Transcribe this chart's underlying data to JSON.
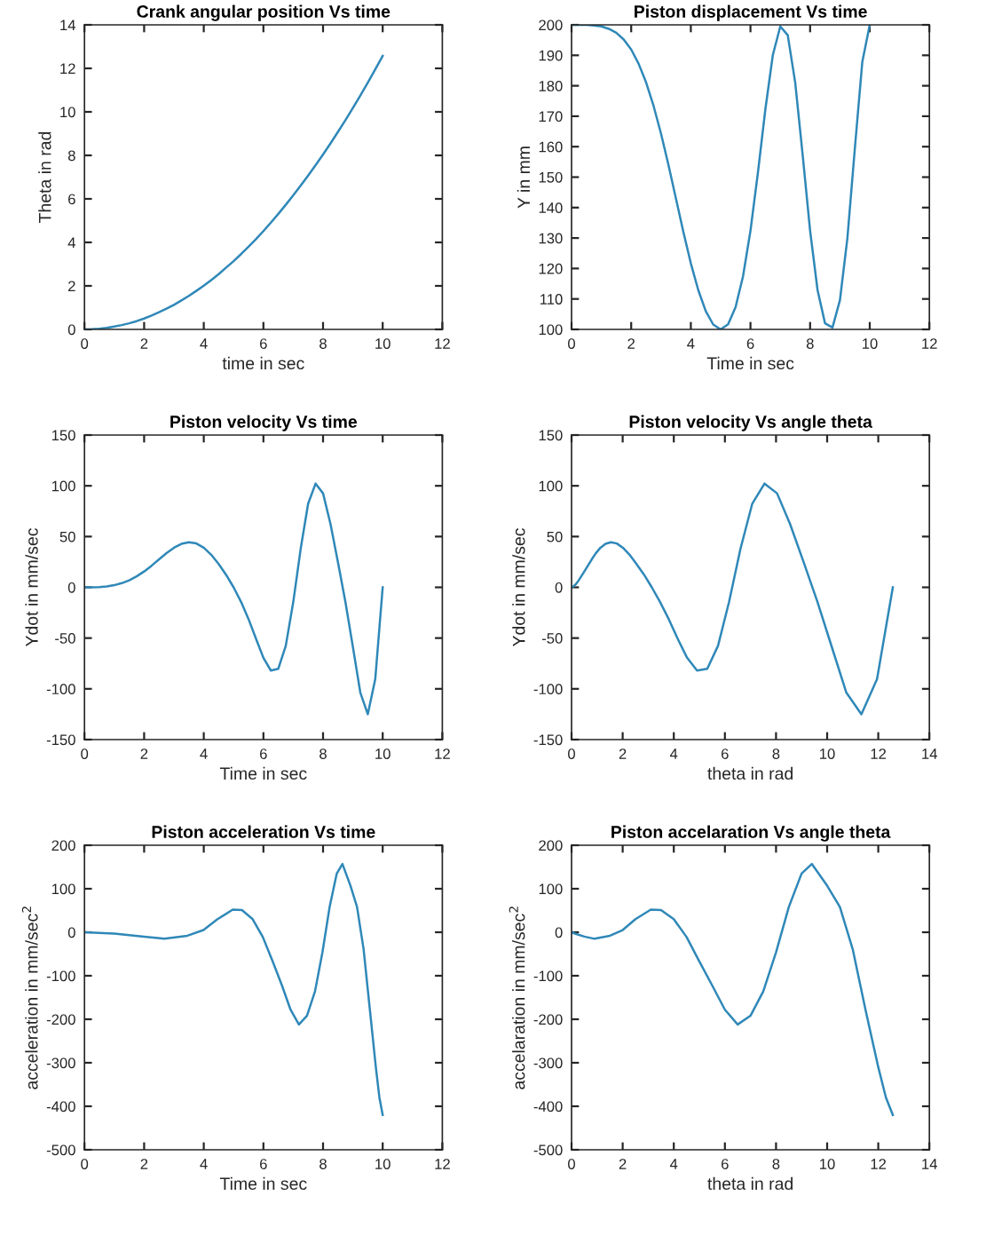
{
  "chart_data": [
    {
      "type": "line",
      "title": "Crank angular position Vs time",
      "xlabel": "time in sec",
      "ylabel": "Theta in rad",
      "xlim": [
        0,
        12
      ],
      "xticks": [
        0,
        2,
        4,
        6,
        8,
        10,
        12
      ],
      "ylim": [
        0,
        14
      ],
      "yticks": [
        0,
        2,
        4,
        6,
        8,
        10,
        12,
        14
      ],
      "grid": false,
      "x": [
        0,
        0.25,
        0.5,
        0.75,
        1,
        1.25,
        1.5,
        1.75,
        2,
        2.25,
        2.5,
        2.75,
        3,
        3.25,
        3.5,
        3.75,
        4,
        4.25,
        4.5,
        4.75,
        5,
        5.25,
        5.5,
        5.75,
        6,
        6.25,
        6.5,
        6.75,
        7,
        7.25,
        7.5,
        7.75,
        8,
        8.25,
        8.5,
        8.75,
        9,
        9.25,
        9.5,
        9.75,
        10
      ],
      "series": [
        {
          "color": "#2f88b8",
          "values": [
            0.0,
            0.01,
            0.03,
            0.07,
            0.13,
            0.2,
            0.28,
            0.38,
            0.5,
            0.64,
            0.79,
            0.95,
            1.13,
            1.33,
            1.54,
            1.77,
            2.01,
            2.27,
            2.54,
            2.84,
            3.14,
            3.46,
            3.8,
            4.15,
            4.52,
            4.91,
            5.31,
            5.73,
            6.16,
            6.61,
            7.07,
            7.55,
            8.04,
            8.55,
            9.08,
            9.62,
            10.18,
            10.75,
            11.34,
            11.95,
            12.57
          ]
        }
      ]
    },
    {
      "type": "line",
      "title": "Piston displacement Vs time",
      "xlabel": "Time in sec",
      "ylabel": "Y in mm",
      "xlim": [
        0,
        12
      ],
      "xticks": [
        0,
        2,
        4,
        6,
        8,
        10,
        12
      ],
      "ylim": [
        100,
        200
      ],
      "yticks": [
        100,
        110,
        120,
        130,
        140,
        150,
        160,
        170,
        180,
        190,
        200
      ],
      "grid": false,
      "x": [
        0,
        0.25,
        0.5,
        0.75,
        1,
        1.25,
        1.5,
        1.75,
        2,
        2.25,
        2.5,
        2.75,
        3,
        3.25,
        3.5,
        3.75,
        4,
        4.25,
        4.5,
        4.75,
        5,
        5.25,
        5.5,
        5.75,
        6,
        6.25,
        6.5,
        6.75,
        7,
        7.25,
        7.5,
        7.75,
        8,
        8.25,
        8.5,
        8.75,
        9,
        9.25,
        9.5,
        9.75,
        10
      ],
      "series": [
        {
          "color": "#2f88b8",
          "values": [
            200.0,
            200.0,
            200.0,
            199.8,
            199.5,
            198.7,
            197.4,
            195.2,
            191.9,
            187.2,
            181.1,
            173.4,
            164.3,
            154.0,
            143.0,
            132.0,
            121.7,
            112.9,
            106.0,
            101.6,
            100.0,
            101.7,
            107.3,
            117.4,
            132.4,
            151.5,
            172.3,
            190.1,
            199.5,
            196.6,
            181.1,
            157.3,
            132.4,
            112.9,
            102.0,
            100.6,
            109.6,
            129.9,
            159.4,
            187.8,
            200.0
          ]
        }
      ]
    },
    {
      "type": "line",
      "title": "Piston velocity Vs time",
      "xlabel": "Time in sec",
      "ylabel": "Ydot in mm/sec",
      "xlim": [
        0,
        12
      ],
      "xticks": [
        0,
        2,
        4,
        6,
        8,
        10,
        12
      ],
      "ylim": [
        -150,
        150
      ],
      "yticks": [
        -150,
        -100,
        -50,
        0,
        50,
        100,
        150
      ],
      "grid": false,
      "x": [
        0,
        0.25,
        0.5,
        0.75,
        1,
        1.25,
        1.5,
        1.75,
        2,
        2.25,
        2.5,
        2.75,
        3,
        3.25,
        3.5,
        3.75,
        4,
        4.25,
        4.5,
        4.75,
        5,
        5.25,
        5.5,
        5.75,
        6,
        6.25,
        6.5,
        6.75,
        7,
        7.25,
        7.5,
        7.75,
        8,
        8.25,
        8.5,
        8.75,
        9,
        9.25,
        9.5,
        9.75,
        10
      ],
      "series": [
        {
          "color": "#2f88b8",
          "values": [
            0.0,
            0.0,
            0.3,
            0.9,
            2.1,
            4.1,
            6.9,
            10.8,
            15.6,
            21.3,
            27.5,
            33.6,
            39.0,
            42.8,
            44.4,
            43.2,
            39.0,
            32.1,
            23.0,
            12.3,
            0.0,
            -14.3,
            -31.2,
            -50.5,
            -69.4,
            -82.0,
            -80.2,
            -57.6,
            -14.7,
            38.0,
            82.4,
            102.2,
            92.6,
            62.3,
            24.8,
            -14.4,
            -58.6,
            -103.7,
            -125.0,
            -90.6,
            0.0
          ]
        }
      ]
    },
    {
      "type": "line",
      "title": "Piston velocity Vs angle theta",
      "xlabel": "theta in rad",
      "ylabel": "Ydot in mm/sec",
      "xlim": [
        0,
        14
      ],
      "xticks": [
        0,
        2,
        4,
        6,
        8,
        10,
        12,
        14
      ],
      "ylim": [
        -150,
        150
      ],
      "yticks": [
        -150,
        -100,
        -50,
        0,
        50,
        100,
        150
      ],
      "grid": false,
      "x": [
        0.0,
        0.01,
        0.03,
        0.07,
        0.13,
        0.2,
        0.28,
        0.38,
        0.5,
        0.64,
        0.79,
        0.95,
        1.13,
        1.33,
        1.54,
        1.77,
        2.01,
        2.27,
        2.54,
        2.84,
        3.14,
        3.46,
        3.8,
        4.15,
        4.52,
        4.91,
        5.31,
        5.73,
        6.16,
        6.61,
        7.07,
        7.55,
        8.04,
        8.55,
        9.08,
        9.62,
        10.18,
        10.75,
        11.34,
        11.95,
        12.57
      ],
      "series": [
        {
          "color": "#2f88b8",
          "values": [
            0.0,
            0.0,
            0.3,
            0.9,
            2.1,
            4.1,
            6.9,
            10.8,
            15.6,
            21.3,
            27.5,
            33.6,
            39.0,
            42.8,
            44.4,
            43.2,
            39.0,
            32.1,
            23.0,
            12.3,
            0.0,
            -14.3,
            -31.2,
            -50.5,
            -69.4,
            -82.0,
            -80.2,
            -57.6,
            -14.7,
            38.0,
            82.4,
            102.2,
            92.6,
            62.3,
            24.8,
            -14.4,
            -58.6,
            -103.7,
            -125.0,
            -90.6,
            0.0
          ]
        }
      ]
    },
    {
      "type": "line",
      "title": "Piston acceleration Vs time",
      "xlabel": "Time in sec",
      "ylabel": "acceleration in mm/sec$^{2}$",
      "xlim": [
        0,
        12
      ],
      "xticks": [
        0,
        2,
        4,
        6,
        8,
        10,
        12
      ],
      "ylim": [
        -500,
        200
      ],
      "yticks": [
        -500,
        -400,
        -300,
        -200,
        -100,
        0,
        100,
        200
      ],
      "grid": false,
      "x": [
        0,
        1,
        2,
        2.68,
        3.45,
        3.99,
        4.46,
        4.97,
        5.28,
        5.64,
        5.98,
        6.31,
        6.62,
        6.91,
        7.19,
        7.46,
        7.73,
        7.98,
        8.22,
        8.46,
        8.65,
        8.92,
        9.14,
        9.36,
        9.57,
        9.77,
        9.89,
        10
      ],
      "series": [
        {
          "color": "#2f88b8",
          "values": [
            0,
            -3,
            -10,
            -15,
            -8,
            5,
            30,
            52,
            51,
            30,
            -11,
            -67,
            -122,
            -178,
            -212,
            -192,
            -136,
            -46,
            58,
            135,
            157,
            107,
            58,
            -39,
            -178,
            -310,
            -380,
            -420
          ]
        }
      ]
    },
    {
      "type": "line",
      "title": "Piston accelaration Vs angle theta",
      "xlabel": "theta in rad",
      "ylabel": "accelaration in mm/sec$^{2}$",
      "xlim": [
        0,
        14
      ],
      "xticks": [
        0,
        2,
        4,
        6,
        8,
        10,
        12,
        14
      ],
      "ylim": [
        -500,
        200
      ],
      "yticks": [
        -500,
        -400,
        -300,
        -200,
        -100,
        0,
        100,
        200
      ],
      "grid": false,
      "x": [
        0,
        0.13,
        0.5,
        0.9,
        1.5,
        2,
        2.5,
        3.1,
        3.5,
        4,
        4.5,
        5,
        5.5,
        6,
        6.5,
        7,
        7.5,
        8,
        8.5,
        9,
        9.4,
        10,
        10.5,
        11,
        11.5,
        12,
        12.3,
        12.57
      ],
      "series": [
        {
          "color": "#2f88b8",
          "values": [
            0,
            -3,
            -10,
            -15,
            -8,
            5,
            30,
            52,
            51,
            30,
            -11,
            -67,
            -122,
            -178,
            -212,
            -192,
            -136,
            -46,
            58,
            135,
            157,
            107,
            58,
            -39,
            -178,
            -310,
            -380,
            -420
          ]
        }
      ]
    }
  ]
}
